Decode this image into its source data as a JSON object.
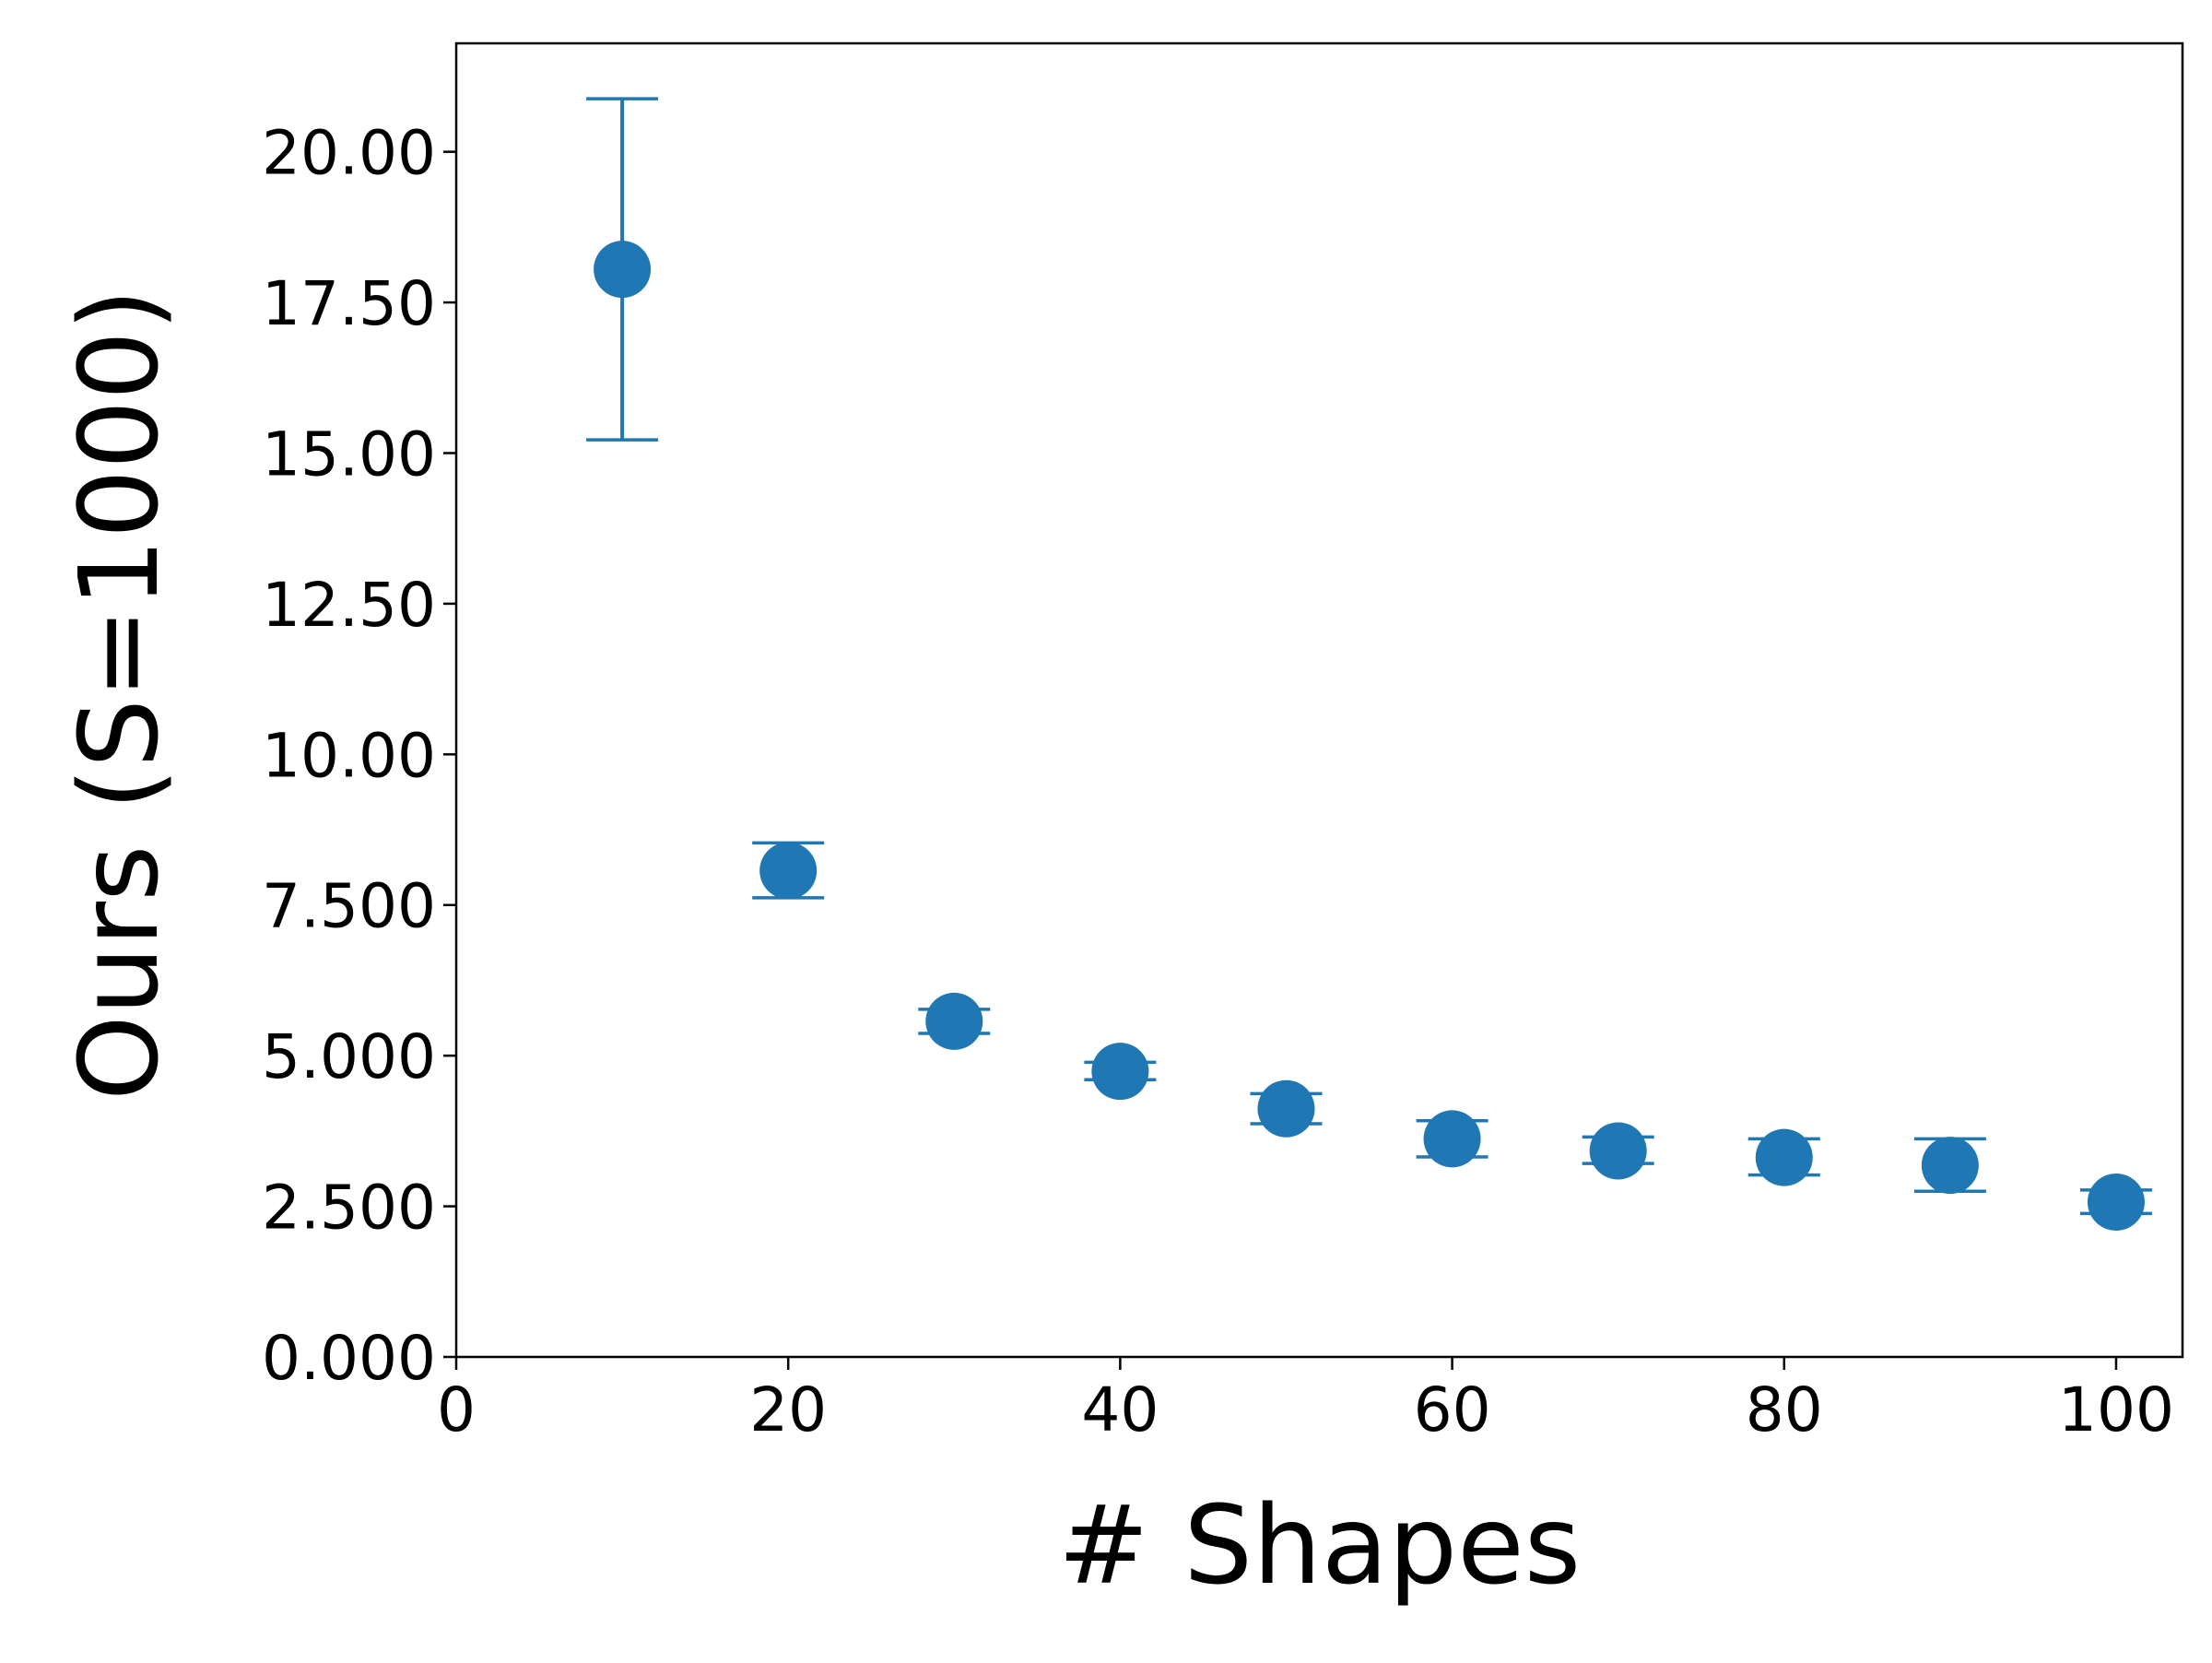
{
  "chart_data": {
    "type": "scatter",
    "title": "",
    "xlabel": "# Shapes",
    "ylabel": "Ours (S=1000)",
    "xlim": [
      0,
      104
    ],
    "ylim": [
      0,
      21.8
    ],
    "xticks": [
      {
        "value": 0,
        "label": "0"
      },
      {
        "value": 20,
        "label": "20"
      },
      {
        "value": 40,
        "label": "40"
      },
      {
        "value": 60,
        "label": "60"
      },
      {
        "value": 80,
        "label": "80"
      },
      {
        "value": 100,
        "label": "100"
      }
    ],
    "yticks": [
      {
        "value": 0,
        "label": "0.000"
      },
      {
        "value": 2.5,
        "label": "2.500"
      },
      {
        "value": 5,
        "label": "5.000"
      },
      {
        "value": 7.5,
        "label": "7.500"
      },
      {
        "value": 10,
        "label": "10.00"
      },
      {
        "value": 12.5,
        "label": "12.50"
      },
      {
        "value": 15,
        "label": "15.00"
      },
      {
        "value": 17.5,
        "label": "17.50"
      },
      {
        "value": 20,
        "label": "20.00"
      }
    ],
    "grid": false,
    "legend": "none",
    "series": [
      {
        "color": "#1f77b4",
        "points": [
          {
            "x": 10,
            "y": 18.05,
            "err_low": 15.22,
            "err_high": 20.88
          },
          {
            "x": 20,
            "y": 8.07,
            "err_low": 7.62,
            "err_high": 8.53
          },
          {
            "x": 30,
            "y": 5.57,
            "err_low": 5.37,
            "err_high": 5.77
          },
          {
            "x": 40,
            "y": 4.74,
            "err_low": 4.6,
            "err_high": 4.89
          },
          {
            "x": 50,
            "y": 4.12,
            "err_low": 3.87,
            "err_high": 4.37
          },
          {
            "x": 60,
            "y": 3.62,
            "err_low": 3.32,
            "err_high": 3.92
          },
          {
            "x": 70,
            "y": 3.42,
            "err_low": 3.21,
            "err_high": 3.65
          },
          {
            "x": 80,
            "y": 3.31,
            "err_low": 3.02,
            "err_high": 3.62
          },
          {
            "x": 90,
            "y": 3.18,
            "err_low": 2.75,
            "err_high": 3.62
          },
          {
            "x": 100,
            "y": 2.57,
            "err_low": 2.38,
            "err_high": 2.77
          }
        ]
      }
    ]
  }
}
